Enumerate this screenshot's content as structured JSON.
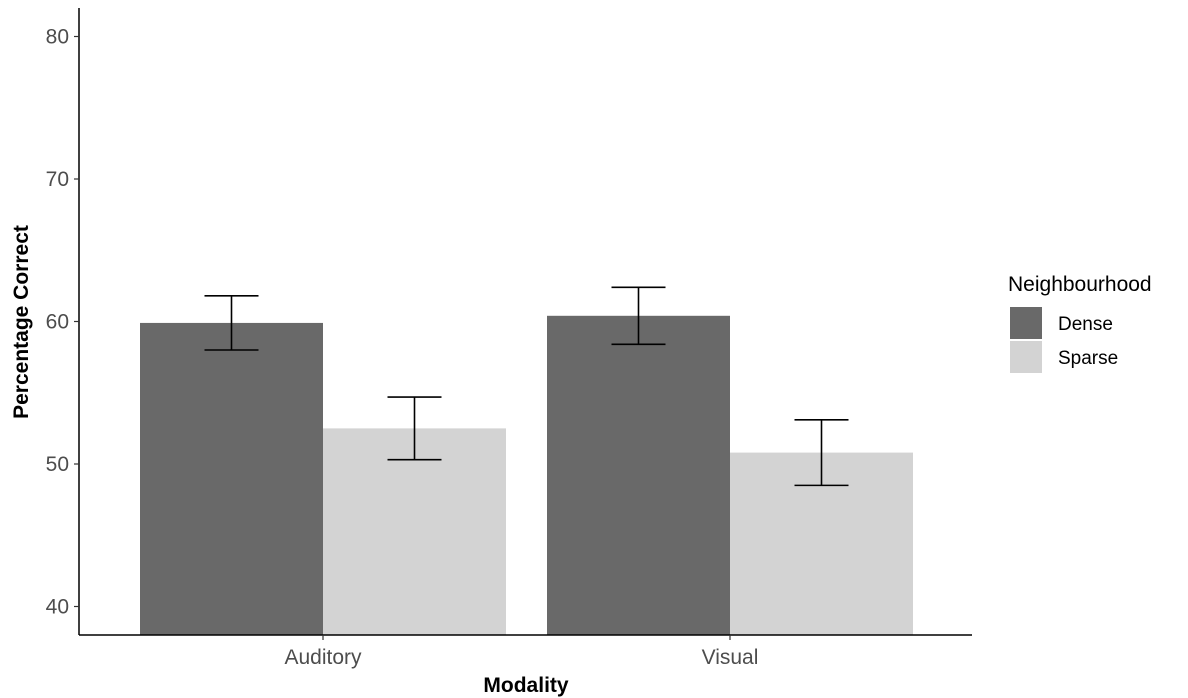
{
  "chart_data": {
    "type": "bar",
    "xlabel": "Modality",
    "ylabel": "Percentage Correct",
    "categories": [
      "Auditory",
      "Visual"
    ],
    "ylim": [
      38,
      82
    ],
    "yticks": [
      40,
      50,
      60,
      70,
      80
    ],
    "grid": false,
    "legend": {
      "title": "Neighbourhood",
      "position": "right"
    },
    "series": [
      {
        "name": "Dense",
        "color": "#696969",
        "values": [
          59.9,
          60.4
        ],
        "err_low": [
          58.0,
          58.4
        ],
        "err_high": [
          61.8,
          62.4
        ]
      },
      {
        "name": "Sparse",
        "color": "#d3d3d3",
        "values": [
          52.5,
          50.8
        ],
        "err_low": [
          50.3,
          48.5
        ],
        "err_high": [
          54.7,
          53.1
        ]
      }
    ]
  }
}
